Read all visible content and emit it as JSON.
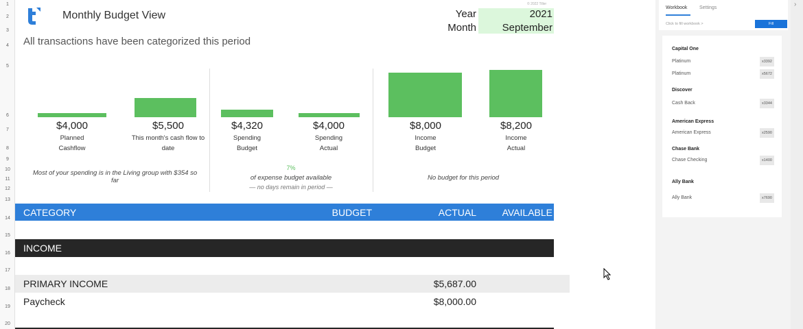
{
  "sheet": {
    "row_numbers": [
      "1",
      "2",
      "3",
      "4",
      "5",
      "6",
      "7",
      "8",
      "9",
      "10",
      "11",
      "12",
      "13",
      "14",
      "15",
      "16",
      "17",
      "18",
      "19",
      "20"
    ],
    "title": "Monthly Budget View",
    "subtitle": "All transactions have been categorized this period",
    "copyright": "© 2022 Tiller",
    "year_label": "Year",
    "year_value": "2021",
    "month_label": "Month",
    "month_value": "September",
    "metrics": [
      {
        "amount": "$4,000",
        "label1": "Planned",
        "label2": "Cashflow",
        "value": 4000
      },
      {
        "amount": "$5,500",
        "label1": "This month's cash flow to",
        "label2": "date",
        "value": 5500
      },
      {
        "amount": "$4,320",
        "label1": "Spending",
        "label2": "Budget",
        "value": 4320
      },
      {
        "amount": "$4,000",
        "label1": "Spending",
        "label2": "Actual",
        "value": 4000
      },
      {
        "amount": "$8,000",
        "label1": "Income",
        "label2": "Budget",
        "value": 8000
      },
      {
        "amount": "$8,200",
        "label1": "Income",
        "label2": "Actual",
        "value": 8200
      }
    ],
    "note_left_1": "Most of your spending is in the Living group with $354 so",
    "note_left_2": "far",
    "pct": "7%",
    "note_mid_1": "of expense budget available",
    "note_mid_2": "— no days remain in period —",
    "note_right": "No budget for this period",
    "table_headers": {
      "category": "CATEGORY",
      "budget": "BUDGET",
      "actual": "ACTUAL",
      "available": "AVAILABLE"
    },
    "group": "INCOME",
    "subgroup": {
      "name": "PRIMARY INCOME",
      "actual": "$5,687.00"
    },
    "rows": [
      {
        "name": "Paycheck",
        "actual": "$8,000.00"
      }
    ]
  },
  "panel": {
    "tabs": [
      "Workbook",
      "Settings"
    ],
    "fill_hint": "Click to fill workbook >",
    "fill_button": "Fill",
    "institutions": [
      {
        "name": "Capital One",
        "accounts": [
          {
            "name": "Platinum",
            "mask": "x3392"
          },
          {
            "name": "Platinum",
            "mask": "x5672"
          }
        ]
      },
      {
        "name": "Discover",
        "accounts": [
          {
            "name": "Cash Back",
            "mask": "x3344"
          }
        ]
      },
      {
        "name": "American Express",
        "accounts": [
          {
            "name": "American Express",
            "mask": "x2590"
          }
        ]
      },
      {
        "name": "Chase Bank",
        "accounts": [
          {
            "name": "Chase Checking",
            "mask": "x1400"
          }
        ]
      },
      {
        "name": "Ally Bank",
        "accounts": [
          {
            "name": "Ally Bank",
            "mask": "x7690"
          }
        ]
      }
    ]
  },
  "colors": {
    "accent_blue": "#2e7fd9",
    "green": "#5cbf5f",
    "light_green": "#dcf7dc",
    "dark": "#262626"
  }
}
